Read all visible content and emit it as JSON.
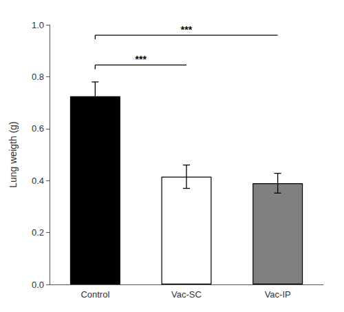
{
  "chart_data": {
    "type": "bar",
    "categories": [
      "Control",
      "Vac-SC",
      "Vac-IP"
    ],
    "values": [
      0.725,
      0.415,
      0.39
    ],
    "errors": [
      0.055,
      0.045,
      0.038
    ],
    "colors": [
      "#000000",
      "#ffffff",
      "#808080"
    ],
    "ylabel": "Lung weigth (g)",
    "ylim": [
      0.0,
      1.0
    ],
    "yticks": [
      {
        "value": 0.0,
        "label": "0.0"
      },
      0.2,
      0.4,
      0.6,
      0.8,
      {
        "value": 1.0,
        "label": "1.0"
      }
    ],
    "grid": false,
    "annotations": [
      {
        "text": "***",
        "from": "Control",
        "to": "Vac-SC",
        "y": 0.845
      },
      {
        "text": "***",
        "from": "Control",
        "to": "Vac-IP",
        "y": 0.96
      }
    ]
  }
}
